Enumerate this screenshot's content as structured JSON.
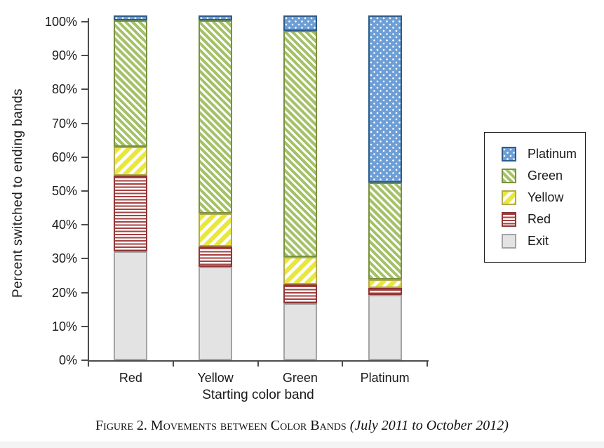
{
  "chart_data": {
    "type": "bar",
    "variant": "stacked-percent",
    "title": "",
    "xlabel": "Starting color band",
    "ylabel": "Percent switched to ending bands",
    "categories": [
      "Red",
      "Yellow",
      "Green",
      "Platinum"
    ],
    "stack_order_bottom_to_top": [
      "Exit",
      "Red",
      "Yellow",
      "Green",
      "Platinum"
    ],
    "series": [
      {
        "name": "Exit",
        "values": [
          31.5,
          27.0,
          16.5,
          19.0
        ]
      },
      {
        "name": "Red",
        "values": [
          22.0,
          6.0,
          5.5,
          2.0
        ]
      },
      {
        "name": "Yellow",
        "values": [
          8.5,
          9.5,
          8.0,
          2.5
        ]
      },
      {
        "name": "Green",
        "values": [
          36.5,
          56.0,
          65.5,
          28.0
        ]
      },
      {
        "name": "Platinum",
        "values": [
          1.5,
          1.5,
          4.5,
          48.5
        ]
      }
    ],
    "y_ticks": [
      "0%",
      "10%",
      "20%",
      "30%",
      "40%",
      "50%",
      "60%",
      "70%",
      "80%",
      "90%",
      "100%"
    ],
    "ylim": [
      0,
      100
    ],
    "grid": "off",
    "legend": {
      "position": "right",
      "items": [
        "Platinum",
        "Green",
        "Yellow",
        "Red",
        "Exit"
      ]
    },
    "colors": {
      "platinum_fill": "#6d9ed5",
      "platinum_border": "#2e5c8a",
      "green_stripe": "#a4c167",
      "green_border": "#7a923e",
      "yellow_stripe": "#e9e73d",
      "yellow_border": "#b3aa4e",
      "red_stripe": "#a54040",
      "red_border": "#8f3535",
      "exit_fill": "#e3e3e3",
      "exit_border": "#a3a3a3",
      "axis": "#4d4d4d",
      "text": "#1a1a1a"
    },
    "patterns": {
      "Platinum": "blue with white dots",
      "Green": "green backslash diagonal hatch",
      "Yellow": "yellow forward-slash diagonal hatch",
      "Red": "red horizontal stripes",
      "Exit": "solid light gray"
    }
  },
  "caption": {
    "figure_label": "Figure 2. Movements between Color Bands",
    "figure_note_italic": "(July 2011 to October 2012)"
  }
}
